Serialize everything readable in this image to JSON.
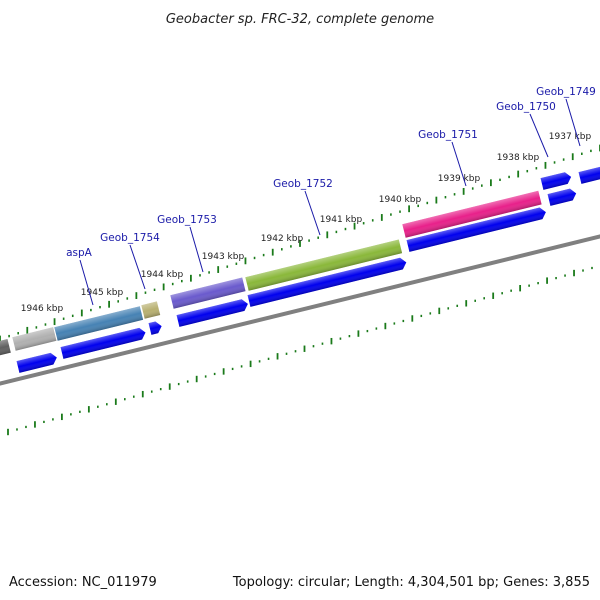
{
  "header": {
    "title": "Geobacter sp. FRC-32, complete genome"
  },
  "footer": {
    "accession": "Accession: NC_011979",
    "stats": "Topology: circular; Length: 4,304,501 bp; Genes: 3,855"
  },
  "scale_labels": [
    "1937 kbp",
    "1938 kbp",
    "1939 kbp",
    "1940 kbp",
    "1941 kbp",
    "1942 kbp",
    "1943 kbp",
    "1944 kbp",
    "1945 kbp",
    "1946 kbp"
  ],
  "gene_labels": [
    "Geob_1749",
    "Geob_1750",
    "Geob_1751",
    "Geob_1752",
    "Geob_1753",
    "Geob_1754",
    "aspA"
  ],
  "colors": {
    "cds": "#0000ee",
    "backbone": "#808080",
    "ticks": "#1a7a1a",
    "label": "#1a1aa8",
    "geob_1751": "#e8208a",
    "geob_1752": "#8ab83a",
    "geob_1753": "#6a5acd",
    "geob_1754": "#4682b4",
    "aspA": "#b8b070",
    "grey_gene": "#b0b0b0",
    "dark_gene": "#606060"
  }
}
